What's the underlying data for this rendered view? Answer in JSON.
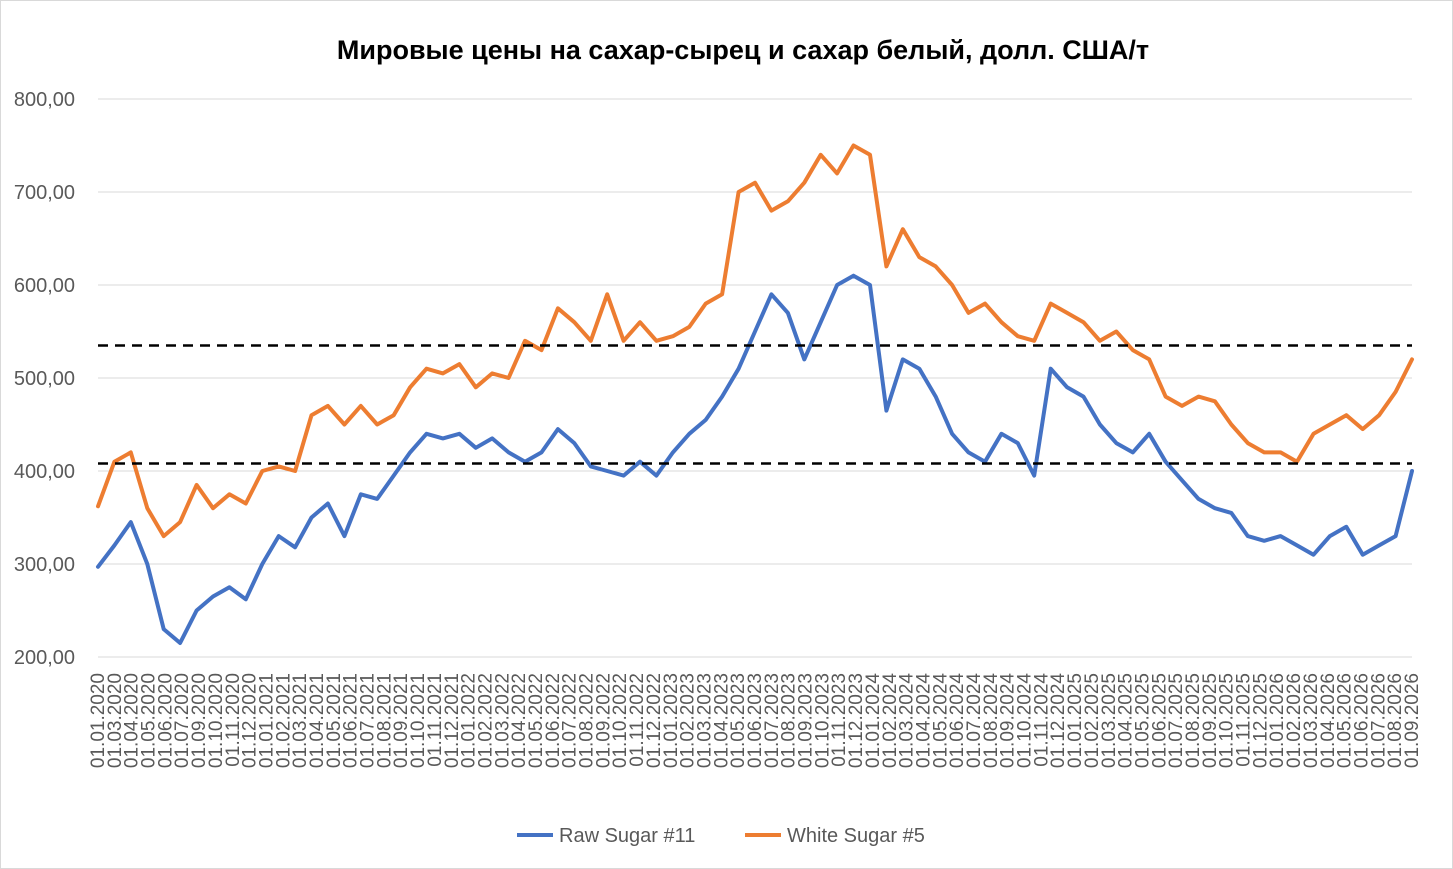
{
  "chart_data": {
    "type": "line",
    "title": "Мировые цены на сахар-сырец и сахар белый, долл. США/т",
    "xlabel": "",
    "ylabel": "",
    "ylim": [
      200,
      800
    ],
    "y_ticks": [
      "200,00",
      "300,00",
      "400,00",
      "500,00",
      "600,00",
      "700,00",
      "800,00"
    ],
    "y_tick_values": [
      200,
      300,
      400,
      500,
      600,
      700,
      800
    ],
    "x_tick_labels": [
      "01.01.2020",
      "01.03.2020",
      "01.04.2020",
      "01.05.2020",
      "01.06.2020",
      "01.07.2020",
      "01.09.2020",
      "01.10.2020",
      "01.11.2020",
      "01.12.2020",
      "01.01.2021",
      "01.02.2021",
      "01.03.2021",
      "01.04.2021",
      "01.05.2021",
      "01.06.2021",
      "01.07.2021",
      "01.08.2021",
      "01.09.2021",
      "01.10.2021",
      "01.11.2021",
      "01.12.2021",
      "01.01.2022",
      "01.02.2022",
      "01.03.2022",
      "01.04.2022",
      "01.05.2022",
      "01.06.2022",
      "01.07.2022",
      "01.08.2022",
      "01.09.2022",
      "01.10.2022",
      "01.11.2022",
      "01.12.2022",
      "01.01.2023",
      "01.02.2023",
      "01.03.2023",
      "01.04.2023",
      "01.05.2023",
      "01.06.2023",
      "01.07.2023",
      "01.08.2023",
      "01.09.2023",
      "01.10.2023",
      "01.11.2023",
      "01.12.2023",
      "01.01.2024",
      "01.02.2024",
      "01.03.2024",
      "01.04.2024",
      "01.05.2024",
      "01.06.2024",
      "01.07.2024",
      "01.08.2024",
      "01.09.2024",
      "01.10.2024",
      "01.11.2024",
      "01.12.2024",
      "01.01.2025",
      "01.02.2025",
      "01.03.2025",
      "01.04.2025",
      "01.05.2025",
      "01.06.2025",
      "01.07.2025",
      "01.08.2025",
      "01.09.2025",
      "01.10.2025",
      "01.11.2025",
      "01.12.2025",
      "01.01.2026",
      "01.02.2026",
      "01.03.2026",
      "01.04.2026",
      "01.05.2026",
      "01.06.2026",
      "01.07.2026",
      "01.08.2026",
      "01.09.2026"
    ],
    "reference_lines": [
      535,
      408
    ],
    "reference_line_color": "#000000",
    "grid": true,
    "legend": "bottom",
    "x": [
      "2020-01",
      "2020-02",
      "2020-03",
      "2020-04",
      "2020-05",
      "2020-06",
      "2020-07",
      "2020-08",
      "2020-09",
      "2020-10",
      "2020-11",
      "2020-12",
      "2021-01",
      "2021-02",
      "2021-03",
      "2021-04",
      "2021-05",
      "2021-06",
      "2021-07",
      "2021-08",
      "2021-09",
      "2021-10",
      "2021-11",
      "2021-12",
      "2022-01",
      "2022-02",
      "2022-03",
      "2022-04",
      "2022-05",
      "2022-06",
      "2022-07",
      "2022-08",
      "2022-09",
      "2022-10",
      "2022-11",
      "2022-12",
      "2023-01",
      "2023-02",
      "2023-03",
      "2023-04",
      "2023-05",
      "2023-06",
      "2023-07",
      "2023-08",
      "2023-09",
      "2023-10",
      "2023-11",
      "2023-12",
      "2024-01",
      "2024-02",
      "2024-03",
      "2024-04",
      "2024-05",
      "2024-06",
      "2024-07",
      "2024-08",
      "2024-09",
      "2024-10",
      "2024-11",
      "2024-12",
      "2025-01",
      "2025-02",
      "2025-03",
      "2025-04",
      "2025-05",
      "2025-06",
      "2025-07",
      "2025-08",
      "2025-09",
      "2025-10",
      "2025-11",
      "2025-12",
      "2026-01",
      "2026-02",
      "2026-03",
      "2026-04",
      "2026-05",
      "2026-06",
      "2026-07",
      "2026-08",
      "2026-09"
    ],
    "series": [
      {
        "name": "Raw Sugar #11",
        "color": "#4472C4",
        "values": [
          297,
          320,
          345,
          300,
          230,
          215,
          250,
          265,
          275,
          262,
          300,
          330,
          318,
          350,
          365,
          330,
          375,
          370,
          395,
          420,
          440,
          435,
          440,
          425,
          435,
          420,
          410,
          420,
          445,
          430,
          405,
          400,
          395,
          410,
          395,
          420,
          440,
          455,
          480,
          510,
          550,
          590,
          570,
          520,
          560,
          600,
          610,
          600,
          465,
          520,
          510,
          480,
          440,
          420,
          410,
          440,
          430,
          395,
          510,
          490,
          480,
          450,
          430,
          420,
          440,
          410,
          390,
          370,
          360,
          355,
          330,
          325,
          330,
          320,
          310,
          330,
          340,
          310,
          320,
          330,
          400
        ],
        "y": [
          297,
          320,
          345,
          300,
          230,
          215,
          250,
          265,
          275,
          262,
          300,
          330,
          318,
          350,
          365,
          330,
          375,
          370,
          395,
          420,
          440,
          435,
          440,
          425,
          435,
          420,
          410,
          420,
          445,
          430,
          405,
          400,
          395,
          410,
          395,
          420,
          440,
          455,
          480,
          510,
          550,
          590,
          570,
          520,
          560,
          600,
          610,
          600,
          465,
          520,
          510,
          480,
          440,
          420,
          410,
          440,
          430,
          395,
          510,
          490,
          480,
          450,
          430,
          420,
          440,
          410,
          390,
          370,
          360,
          355,
          330,
          325,
          330,
          320,
          310,
          330,
          340,
          310,
          320,
          330,
          400
        ]
      },
      {
        "name": "White Sugar #5",
        "color": "#ED7D31",
        "values": [
          362,
          410,
          420,
          360,
          330,
          345,
          385,
          360,
          375,
          365,
          400,
          405,
          400,
          460,
          470,
          450,
          470,
          450,
          460,
          490,
          510,
          505,
          515,
          490,
          505,
          500,
          540,
          530,
          575,
          560,
          540,
          590,
          540,
          560,
          540,
          545,
          555,
          580,
          590,
          700,
          710,
          680,
          690,
          710,
          740,
          720,
          750,
          740,
          620,
          660,
          630,
          620,
          600,
          570,
          580,
          560,
          545,
          540,
          580,
          570,
          560,
          540,
          550,
          530,
          520,
          480,
          470,
          480,
          475,
          450,
          430,
          420,
          420,
          410,
          440,
          450,
          460,
          445,
          460,
          485,
          520
        ],
        "y": [
          362,
          410,
          420,
          360,
          330,
          345,
          385,
          360,
          375,
          365,
          400,
          405,
          400,
          460,
          470,
          450,
          470,
          450,
          460,
          490,
          510,
          505,
          515,
          490,
          505,
          500,
          540,
          530,
          575,
          560,
          540,
          590,
          540,
          560,
          540,
          545,
          555,
          580,
          590,
          700,
          710,
          680,
          690,
          710,
          740,
          720,
          750,
          740,
          620,
          660,
          630,
          620,
          600,
          570,
          580,
          560,
          545,
          540,
          580,
          570,
          560,
          540,
          550,
          530,
          520,
          480,
          470,
          480,
          475,
          450,
          430,
          420,
          420,
          410,
          440,
          450,
          460,
          445,
          460,
          485,
          520
        ]
      }
    ]
  }
}
